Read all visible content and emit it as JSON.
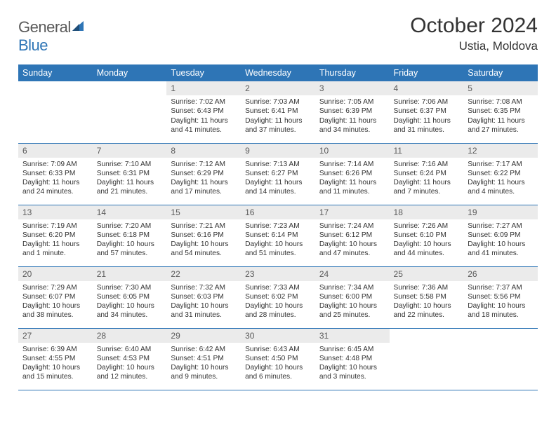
{
  "brand": {
    "word1": "General",
    "word2": "Blue"
  },
  "title": "October 2024",
  "location": "Ustia, Moldova",
  "colors": {
    "header_bg": "#2e75b6",
    "header_text": "#ffffff",
    "daynum_bg": "#ebebeb",
    "rule": "#2e75b6",
    "text": "#333333"
  },
  "daysOfWeek": [
    "Sunday",
    "Monday",
    "Tuesday",
    "Wednesday",
    "Thursday",
    "Friday",
    "Saturday"
  ],
  "weeks": [
    [
      null,
      null,
      {
        "n": "1",
        "sr": "Sunrise: 7:02 AM",
        "ss": "Sunset: 6:43 PM",
        "dl": "Daylight: 11 hours and 41 minutes."
      },
      {
        "n": "2",
        "sr": "Sunrise: 7:03 AM",
        "ss": "Sunset: 6:41 PM",
        "dl": "Daylight: 11 hours and 37 minutes."
      },
      {
        "n": "3",
        "sr": "Sunrise: 7:05 AM",
        "ss": "Sunset: 6:39 PM",
        "dl": "Daylight: 11 hours and 34 minutes."
      },
      {
        "n": "4",
        "sr": "Sunrise: 7:06 AM",
        "ss": "Sunset: 6:37 PM",
        "dl": "Daylight: 11 hours and 31 minutes."
      },
      {
        "n": "5",
        "sr": "Sunrise: 7:08 AM",
        "ss": "Sunset: 6:35 PM",
        "dl": "Daylight: 11 hours and 27 minutes."
      }
    ],
    [
      {
        "n": "6",
        "sr": "Sunrise: 7:09 AM",
        "ss": "Sunset: 6:33 PM",
        "dl": "Daylight: 11 hours and 24 minutes."
      },
      {
        "n": "7",
        "sr": "Sunrise: 7:10 AM",
        "ss": "Sunset: 6:31 PM",
        "dl": "Daylight: 11 hours and 21 minutes."
      },
      {
        "n": "8",
        "sr": "Sunrise: 7:12 AM",
        "ss": "Sunset: 6:29 PM",
        "dl": "Daylight: 11 hours and 17 minutes."
      },
      {
        "n": "9",
        "sr": "Sunrise: 7:13 AM",
        "ss": "Sunset: 6:27 PM",
        "dl": "Daylight: 11 hours and 14 minutes."
      },
      {
        "n": "10",
        "sr": "Sunrise: 7:14 AM",
        "ss": "Sunset: 6:26 PM",
        "dl": "Daylight: 11 hours and 11 minutes."
      },
      {
        "n": "11",
        "sr": "Sunrise: 7:16 AM",
        "ss": "Sunset: 6:24 PM",
        "dl": "Daylight: 11 hours and 7 minutes."
      },
      {
        "n": "12",
        "sr": "Sunrise: 7:17 AM",
        "ss": "Sunset: 6:22 PM",
        "dl": "Daylight: 11 hours and 4 minutes."
      }
    ],
    [
      {
        "n": "13",
        "sr": "Sunrise: 7:19 AM",
        "ss": "Sunset: 6:20 PM",
        "dl": "Daylight: 11 hours and 1 minute."
      },
      {
        "n": "14",
        "sr": "Sunrise: 7:20 AM",
        "ss": "Sunset: 6:18 PM",
        "dl": "Daylight: 10 hours and 57 minutes."
      },
      {
        "n": "15",
        "sr": "Sunrise: 7:21 AM",
        "ss": "Sunset: 6:16 PM",
        "dl": "Daylight: 10 hours and 54 minutes."
      },
      {
        "n": "16",
        "sr": "Sunrise: 7:23 AM",
        "ss": "Sunset: 6:14 PM",
        "dl": "Daylight: 10 hours and 51 minutes."
      },
      {
        "n": "17",
        "sr": "Sunrise: 7:24 AM",
        "ss": "Sunset: 6:12 PM",
        "dl": "Daylight: 10 hours and 47 minutes."
      },
      {
        "n": "18",
        "sr": "Sunrise: 7:26 AM",
        "ss": "Sunset: 6:10 PM",
        "dl": "Daylight: 10 hours and 44 minutes."
      },
      {
        "n": "19",
        "sr": "Sunrise: 7:27 AM",
        "ss": "Sunset: 6:09 PM",
        "dl": "Daylight: 10 hours and 41 minutes."
      }
    ],
    [
      {
        "n": "20",
        "sr": "Sunrise: 7:29 AM",
        "ss": "Sunset: 6:07 PM",
        "dl": "Daylight: 10 hours and 38 minutes."
      },
      {
        "n": "21",
        "sr": "Sunrise: 7:30 AM",
        "ss": "Sunset: 6:05 PM",
        "dl": "Daylight: 10 hours and 34 minutes."
      },
      {
        "n": "22",
        "sr": "Sunrise: 7:32 AM",
        "ss": "Sunset: 6:03 PM",
        "dl": "Daylight: 10 hours and 31 minutes."
      },
      {
        "n": "23",
        "sr": "Sunrise: 7:33 AM",
        "ss": "Sunset: 6:02 PM",
        "dl": "Daylight: 10 hours and 28 minutes."
      },
      {
        "n": "24",
        "sr": "Sunrise: 7:34 AM",
        "ss": "Sunset: 6:00 PM",
        "dl": "Daylight: 10 hours and 25 minutes."
      },
      {
        "n": "25",
        "sr": "Sunrise: 7:36 AM",
        "ss": "Sunset: 5:58 PM",
        "dl": "Daylight: 10 hours and 22 minutes."
      },
      {
        "n": "26",
        "sr": "Sunrise: 7:37 AM",
        "ss": "Sunset: 5:56 PM",
        "dl": "Daylight: 10 hours and 18 minutes."
      }
    ],
    [
      {
        "n": "27",
        "sr": "Sunrise: 6:39 AM",
        "ss": "Sunset: 4:55 PM",
        "dl": "Daylight: 10 hours and 15 minutes."
      },
      {
        "n": "28",
        "sr": "Sunrise: 6:40 AM",
        "ss": "Sunset: 4:53 PM",
        "dl": "Daylight: 10 hours and 12 minutes."
      },
      {
        "n": "29",
        "sr": "Sunrise: 6:42 AM",
        "ss": "Sunset: 4:51 PM",
        "dl": "Daylight: 10 hours and 9 minutes."
      },
      {
        "n": "30",
        "sr": "Sunrise: 6:43 AM",
        "ss": "Sunset: 4:50 PM",
        "dl": "Daylight: 10 hours and 6 minutes."
      },
      {
        "n": "31",
        "sr": "Sunrise: 6:45 AM",
        "ss": "Sunset: 4:48 PM",
        "dl": "Daylight: 10 hours and 3 minutes."
      },
      null,
      null
    ]
  ]
}
